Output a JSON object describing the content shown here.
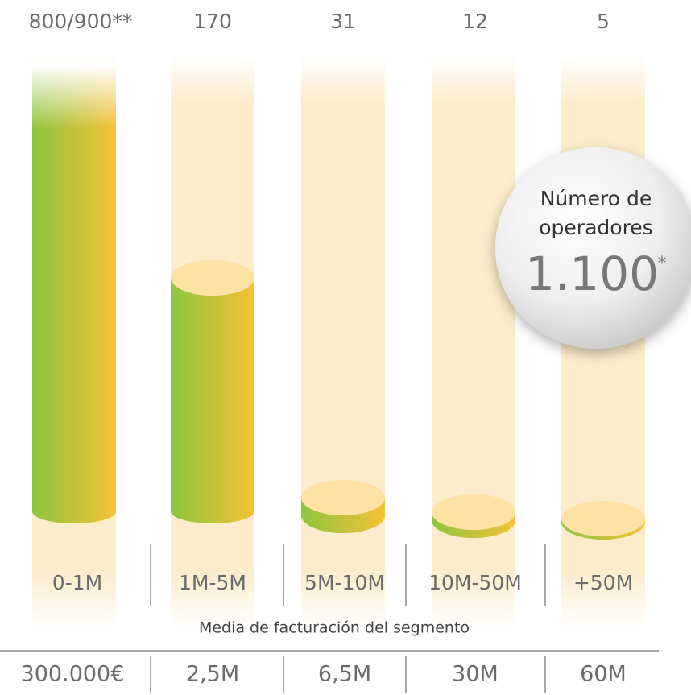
{
  "counts": [
    "800/900**",
    "170",
    "31",
    "12",
    "5"
  ],
  "segments": [
    "0-1M",
    "1M-5M",
    "5M-10M",
    "10M-50M",
    "+50M"
  ],
  "subtitle": "Media de facturación del segmento",
  "averages": [
    "300.000€",
    "2,5M",
    "6,5M",
    "30M",
    "60M"
  ],
  "bubble": {
    "label_line1": "Número de",
    "label_line2": "operadores",
    "total": "1.100",
    "total_mark": "*"
  }
}
